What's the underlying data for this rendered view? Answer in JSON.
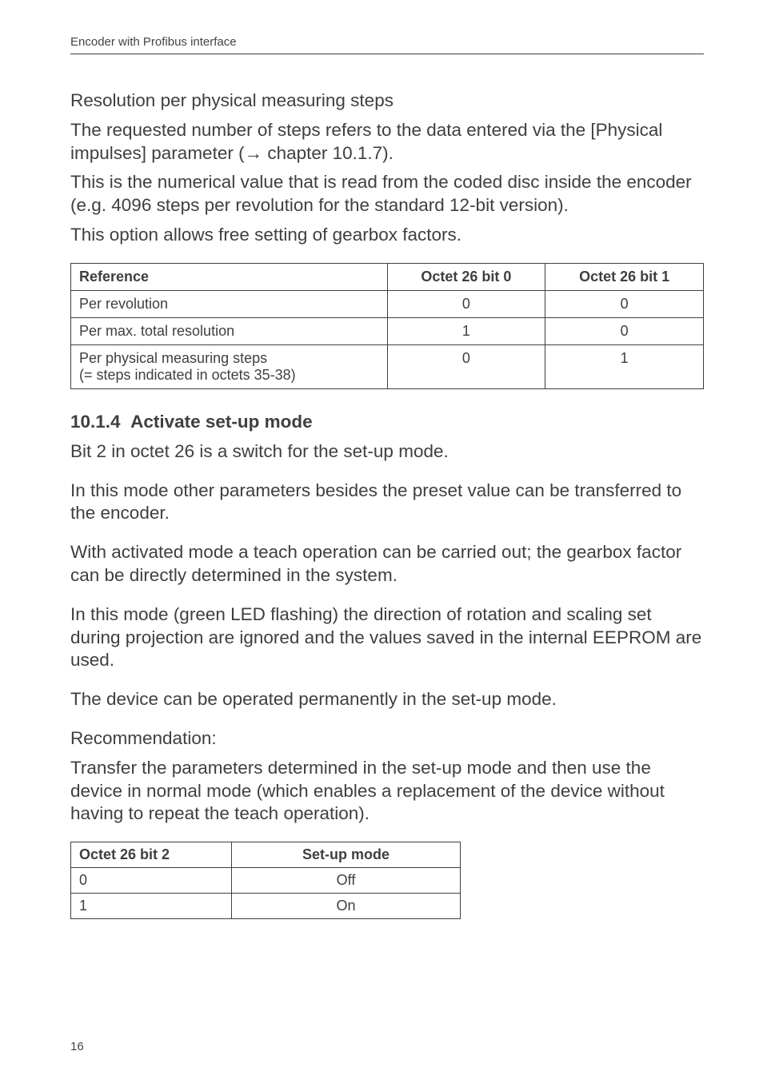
{
  "header": {
    "title": "Encoder with Profibus interface"
  },
  "intro": {
    "h": "Resolution per physical measuring steps",
    "p1": "The requested number of steps refers to the data entered via the [Physical impulses] parameter (→ chapter 10.1.7).",
    "p2": "This is the numerical value that is read from the coded disc inside the encoder (e.g. 4096 steps per revolution for the standard 12-bit version).",
    "p3": "This option allows free setting of gearbox factors."
  },
  "table1": {
    "columns": [
      "Reference",
      "Octet 26 bit 0",
      "Octet 26 bit 1"
    ],
    "rows": [
      {
        "ref": "Per revolution",
        "b0": "0",
        "b1": "0"
      },
      {
        "ref": "Per max. total resolution",
        "b0": "1",
        "b1": "0"
      },
      {
        "ref_line1": "Per physical measuring steps",
        "ref_line2": "(= steps indicated in octets 35-38)",
        "b0": "0",
        "b1": "1"
      }
    ]
  },
  "section": {
    "num": "10.1.4",
    "title": "Activate set-up mode",
    "p1": "Bit 2 in octet 26 is a switch for the set-up mode.",
    "p2": "In this mode other parameters besides the preset value can be transferred to the encoder.",
    "p3": "With activated mode a teach operation can be carried out; the gearbox factor can be directly determined in the system.",
    "p4": "In this mode (green LED flashing) the direction of rotation and scaling set during projection are ignored and the values saved in the internal EEPROM are used.",
    "p5": "The device can be operated permanently in the set-up mode.",
    "rec_h": "Recommendation:",
    "rec_p": "Transfer the parameters determined in the set-up mode and then use the device in normal mode (which enables a replacement of the device without having to repeat the teach operation)."
  },
  "table2": {
    "columns": [
      "Octet 26 bit 2",
      "Set-up mode"
    ],
    "rows": [
      {
        "a": "0",
        "b": "Off"
      },
      {
        "a": "1",
        "b": "On"
      }
    ]
  },
  "footer": {
    "page": "16"
  }
}
